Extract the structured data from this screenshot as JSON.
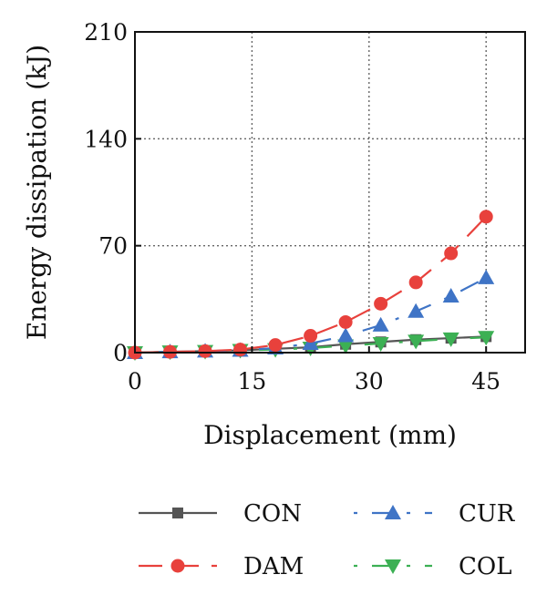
{
  "chart_data": {
    "type": "line",
    "title": "",
    "xlabel": "Displacement (mm)",
    "ylabel": "Energy dissipation (kJ)",
    "xlim": [
      0,
      50
    ],
    "ylim": [
      0,
      210
    ],
    "xticks": [
      0,
      15,
      30,
      45
    ],
    "yticks": [
      0,
      70,
      140,
      210
    ],
    "grid": "dotted",
    "legend_position": "bottom",
    "series": [
      {
        "name": "CON",
        "color": "#555555",
        "marker": "square",
        "line": "solid",
        "x": [
          0,
          4.5,
          9,
          13.5,
          18,
          22.5,
          27,
          31.5,
          36,
          40.5,
          45
        ],
        "y": [
          0,
          0.5,
          1,
          1.5,
          2.5,
          3.5,
          5.5,
          7,
          8.5,
          9.5,
          10.5
        ]
      },
      {
        "name": "DAM",
        "color": "#e8413c",
        "marker": "circle",
        "line": "dashed",
        "x": [
          0,
          4.5,
          9,
          13.5,
          18,
          22.5,
          27,
          31.5,
          36,
          40.5,
          45
        ],
        "y": [
          0,
          0.5,
          1,
          2,
          5,
          11,
          20,
          32,
          46,
          65,
          89
        ]
      },
      {
        "name": "CUR",
        "color": "#3f74c6",
        "marker": "triangle-up",
        "line": "dashdot",
        "x": [
          0,
          4.5,
          9,
          13.5,
          18,
          22.5,
          27,
          31.5,
          36,
          40.5,
          45
        ],
        "y": [
          0,
          0.5,
          1,
          1.5,
          3,
          6,
          11,
          18,
          27,
          37,
          49
        ]
      },
      {
        "name": "COL",
        "color": "#3cb054",
        "marker": "triangle-down",
        "line": "dashdot",
        "x": [
          0,
          4.5,
          9,
          13.5,
          18,
          22.5,
          27,
          31.5,
          36,
          40.5,
          45
        ],
        "y": [
          0,
          0.5,
          0.8,
          1.5,
          2,
          3,
          4.5,
          6,
          7.5,
          9,
          10
        ]
      }
    ]
  }
}
